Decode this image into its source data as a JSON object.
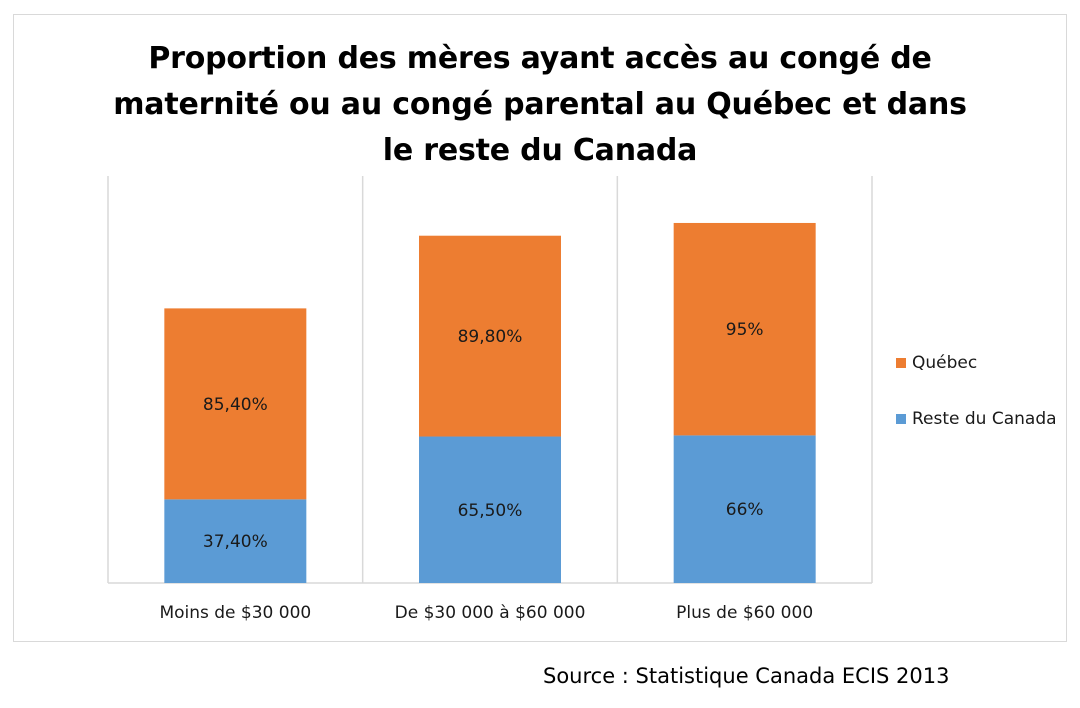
{
  "colors": {
    "quebec": "#ED7D31",
    "reste_du_canada": "#5B9BD5",
    "gridline": "#d9d9d9",
    "frame": "#d9d9d9"
  },
  "source": "Source : Statistique Canada ECIS 2013",
  "chart_data": {
    "type": "bar",
    "stacked": true,
    "title": "Proportion des mères ayant accès au congé de maternité ou au congé parental au Québec et dans le reste du Canada",
    "categories": [
      "Moins de $30 000",
      "De $30 000 à $60 000",
      "Plus de $60 000"
    ],
    "series": [
      {
        "name": "Reste du Canada",
        "color": "#5B9BD5",
        "values": [
          37.4,
          65.5,
          66
        ],
        "labels": [
          "37,40%",
          "65,50%",
          "66%"
        ]
      },
      {
        "name": "Québec",
        "color": "#ED7D31",
        "values": [
          85.4,
          89.8,
          95
        ],
        "labels": [
          "85,40%",
          "89,80%",
          "95%"
        ]
      }
    ],
    "ylim": [
      0,
      182
    ],
    "xlabel": "",
    "ylabel": "",
    "grid": "vertical-category-separators",
    "legend_position": "right",
    "y_axis_labels_shown": false
  }
}
